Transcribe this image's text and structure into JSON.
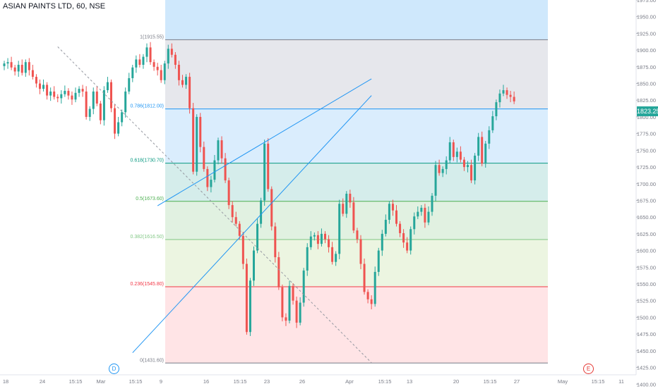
{
  "header": {
    "symbol_title": "ASIAN PAINTS LTD, 60, NSE"
  },
  "last_price_badge": {
    "label": "1823.25",
    "color": "#26a69a"
  },
  "events": [
    {
      "label": "D",
      "color": "#2196f3"
    },
    {
      "label": "E",
      "color": "#e53935"
    }
  ],
  "colors": {
    "up": "#26a69a",
    "down": "#ef5350",
    "trendline": "#2196f3",
    "axis_text": "#787b86"
  },
  "chart_data": {
    "type": "candlestick",
    "title": "ASIAN PAINTS LTD, 60, NSE",
    "xlabel": "",
    "ylabel": "",
    "ylim": [
      1395,
      1975
    ],
    "grid": false,
    "y_ticks": [
      1400,
      1425,
      1450,
      1475,
      1500,
      1525,
      1550,
      1575,
      1600,
      1625,
      1650,
      1675,
      1700,
      1725,
      1750,
      1775,
      1800,
      1825,
      1850,
      1875,
      1900,
      1925,
      1950,
      1975
    ],
    "x_ticks": [
      "18",
      "24",
      "15:15",
      "Mar",
      "15:15",
      "9",
      "16",
      "15:15",
      "23",
      "26",
      "Apr",
      "15:15",
      "13",
      "20",
      "15:15",
      "27",
      "May",
      "15:15",
      "11"
    ],
    "fibonacci": [
      {
        "label": "1(1915.55)",
        "level": 1,
        "price": 1915.55,
        "color": "#787b86"
      },
      {
        "label": "0.786(1812.00)",
        "level": 0.786,
        "price": 1812.0,
        "color": "#2196f3"
      },
      {
        "label": "0.618(1730.70)",
        "level": 0.618,
        "price": 1730.7,
        "color": "#089981"
      },
      {
        "label": "0.5(1673.60)",
        "level": 0.5,
        "price": 1673.6,
        "color": "#4caf50"
      },
      {
        "label": "0.382(1616.50)",
        "level": 0.382,
        "price": 1616.5,
        "color": "#81c784"
      },
      {
        "label": "0.236(1545.80)",
        "level": 0.236,
        "price": 1545.8,
        "color": "#f23645"
      },
      {
        "label": "0(1431.60)",
        "level": 0,
        "price": 1431.6,
        "color": "#787b86"
      }
    ],
    "trendlines": [
      {
        "from": [
          15,
          1905
        ],
        "to": [
          103,
          1432
        ]
      },
      {
        "from": [
          36,
          1447
        ],
        "to": [
          103,
          1832
        ]
      },
      {
        "from": [
          43,
          1667
        ],
        "to": [
          103,
          1857
        ]
      }
    ],
    "closes": [
      1880,
      1882,
      1874,
      1868,
      1878,
      1866,
      1882,
      1870,
      1860,
      1850,
      1842,
      1848,
      1832,
      1838,
      1830,
      1828,
      1834,
      1839,
      1832,
      1826,
      1836,
      1842,
      1838,
      1800,
      1812,
      1838,
      1820,
      1795,
      1840,
      1852,
      1813,
      1775,
      1792,
      1807,
      1838,
      1858,
      1874,
      1886,
      1878,
      1890,
      1904,
      1882,
      1875,
      1870,
      1855,
      1880,
      1902,
      1893,
      1878,
      1855,
      1848,
      1860,
      1813,
      1718,
      1800,
      1755,
      1722,
      1695,
      1706,
      1735,
      1765,
      1738,
      1705,
      1668,
      1650,
      1640,
      1622,
      1580,
      1478,
      1555,
      1600,
      1640,
      1675,
      1760,
      1692,
      1636,
      1590,
      1545,
      1500,
      1495,
      1547,
      1525,
      1492,
      1522,
      1570,
      1605,
      1621,
      1623,
      1610,
      1625,
      1617,
      1605,
      1583,
      1595,
      1670,
      1655,
      1685,
      1672,
      1630,
      1617,
      1580,
      1538,
      1527,
      1520,
      1568,
      1600,
      1625,
      1646,
      1670,
      1660,
      1640,
      1626,
      1612,
      1600,
      1632,
      1651,
      1658,
      1664,
      1642,
      1658,
      1682,
      1728,
      1716,
      1722,
      1735,
      1762,
      1740,
      1748,
      1736,
      1725,
      1728,
      1705,
      1742,
      1770,
      1730,
      1760,
      1780,
      1801,
      1822,
      1835,
      1840,
      1833,
      1830,
      1823.25
    ]
  }
}
